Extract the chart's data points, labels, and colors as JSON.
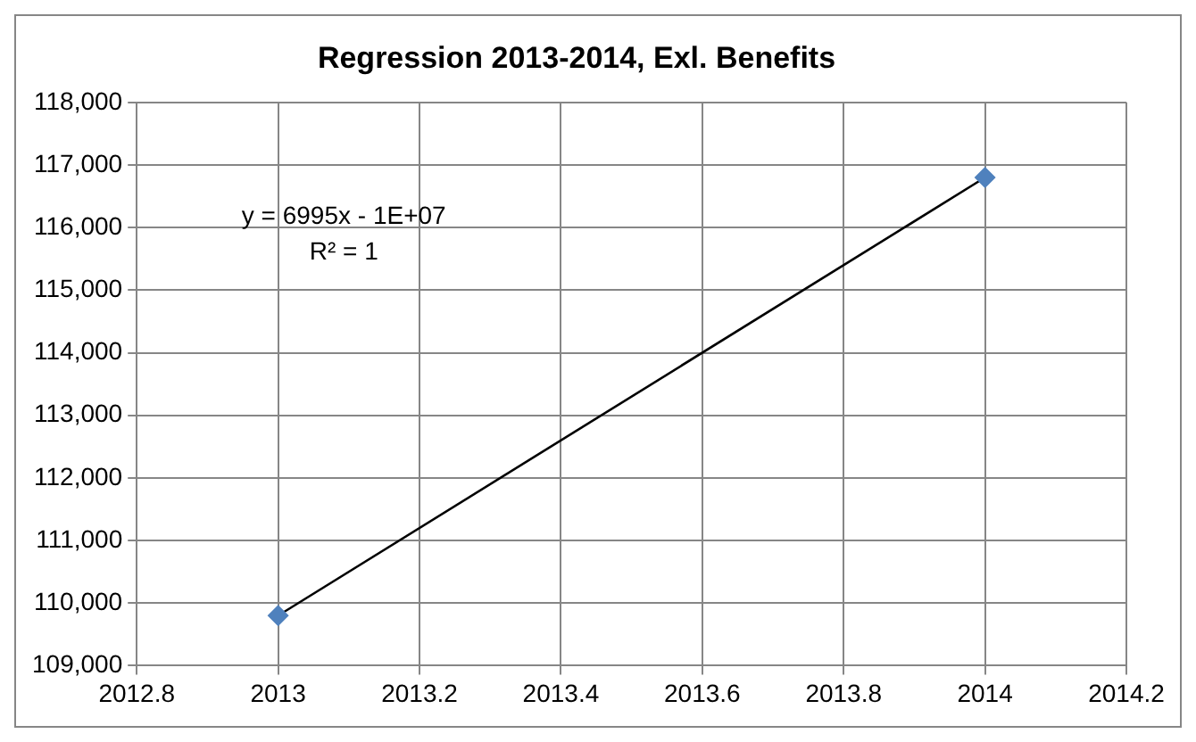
{
  "chart_data": {
    "type": "scatter",
    "title": "Regression 2013-2014, Exl. Benefits",
    "series": [
      {
        "color": "#4f81bd",
        "marker": "diamond",
        "values": [
          109800,
          116800
        ]
      },
      {
        "type": "line",
        "color": "#000000",
        "marker": "none",
        "values": [
          109800,
          116800
        ]
      }
    ],
    "x": [
      2013,
      2014
    ],
    "annotations": [
      "y = 6995x - 1E+07",
      "R² = 1"
    ],
    "xlim": [
      2012.8,
      2014.2
    ],
    "xticks": [
      2012.8,
      2013,
      2013.2,
      2013.4,
      2013.6,
      2013.8,
      2014,
      2014.2
    ],
    "ylim": [
      109000,
      118000
    ],
    "yticks": [
      {
        "value": 109000,
        "label": "109,000"
      },
      {
        "value": 110000,
        "label": "110,000"
      },
      {
        "value": 111000,
        "label": "111,000"
      },
      {
        "value": 112000,
        "label": "112,000"
      },
      {
        "value": 113000,
        "label": "113,000"
      },
      {
        "value": 114000,
        "label": "114,000"
      },
      {
        "value": 115000,
        "label": "115,000"
      },
      {
        "value": 116000,
        "label": "116,000"
      },
      {
        "value": 117000,
        "label": "117,000"
      },
      {
        "value": 118000,
        "label": "118,000"
      }
    ],
    "grid": true,
    "legend": false
  }
}
